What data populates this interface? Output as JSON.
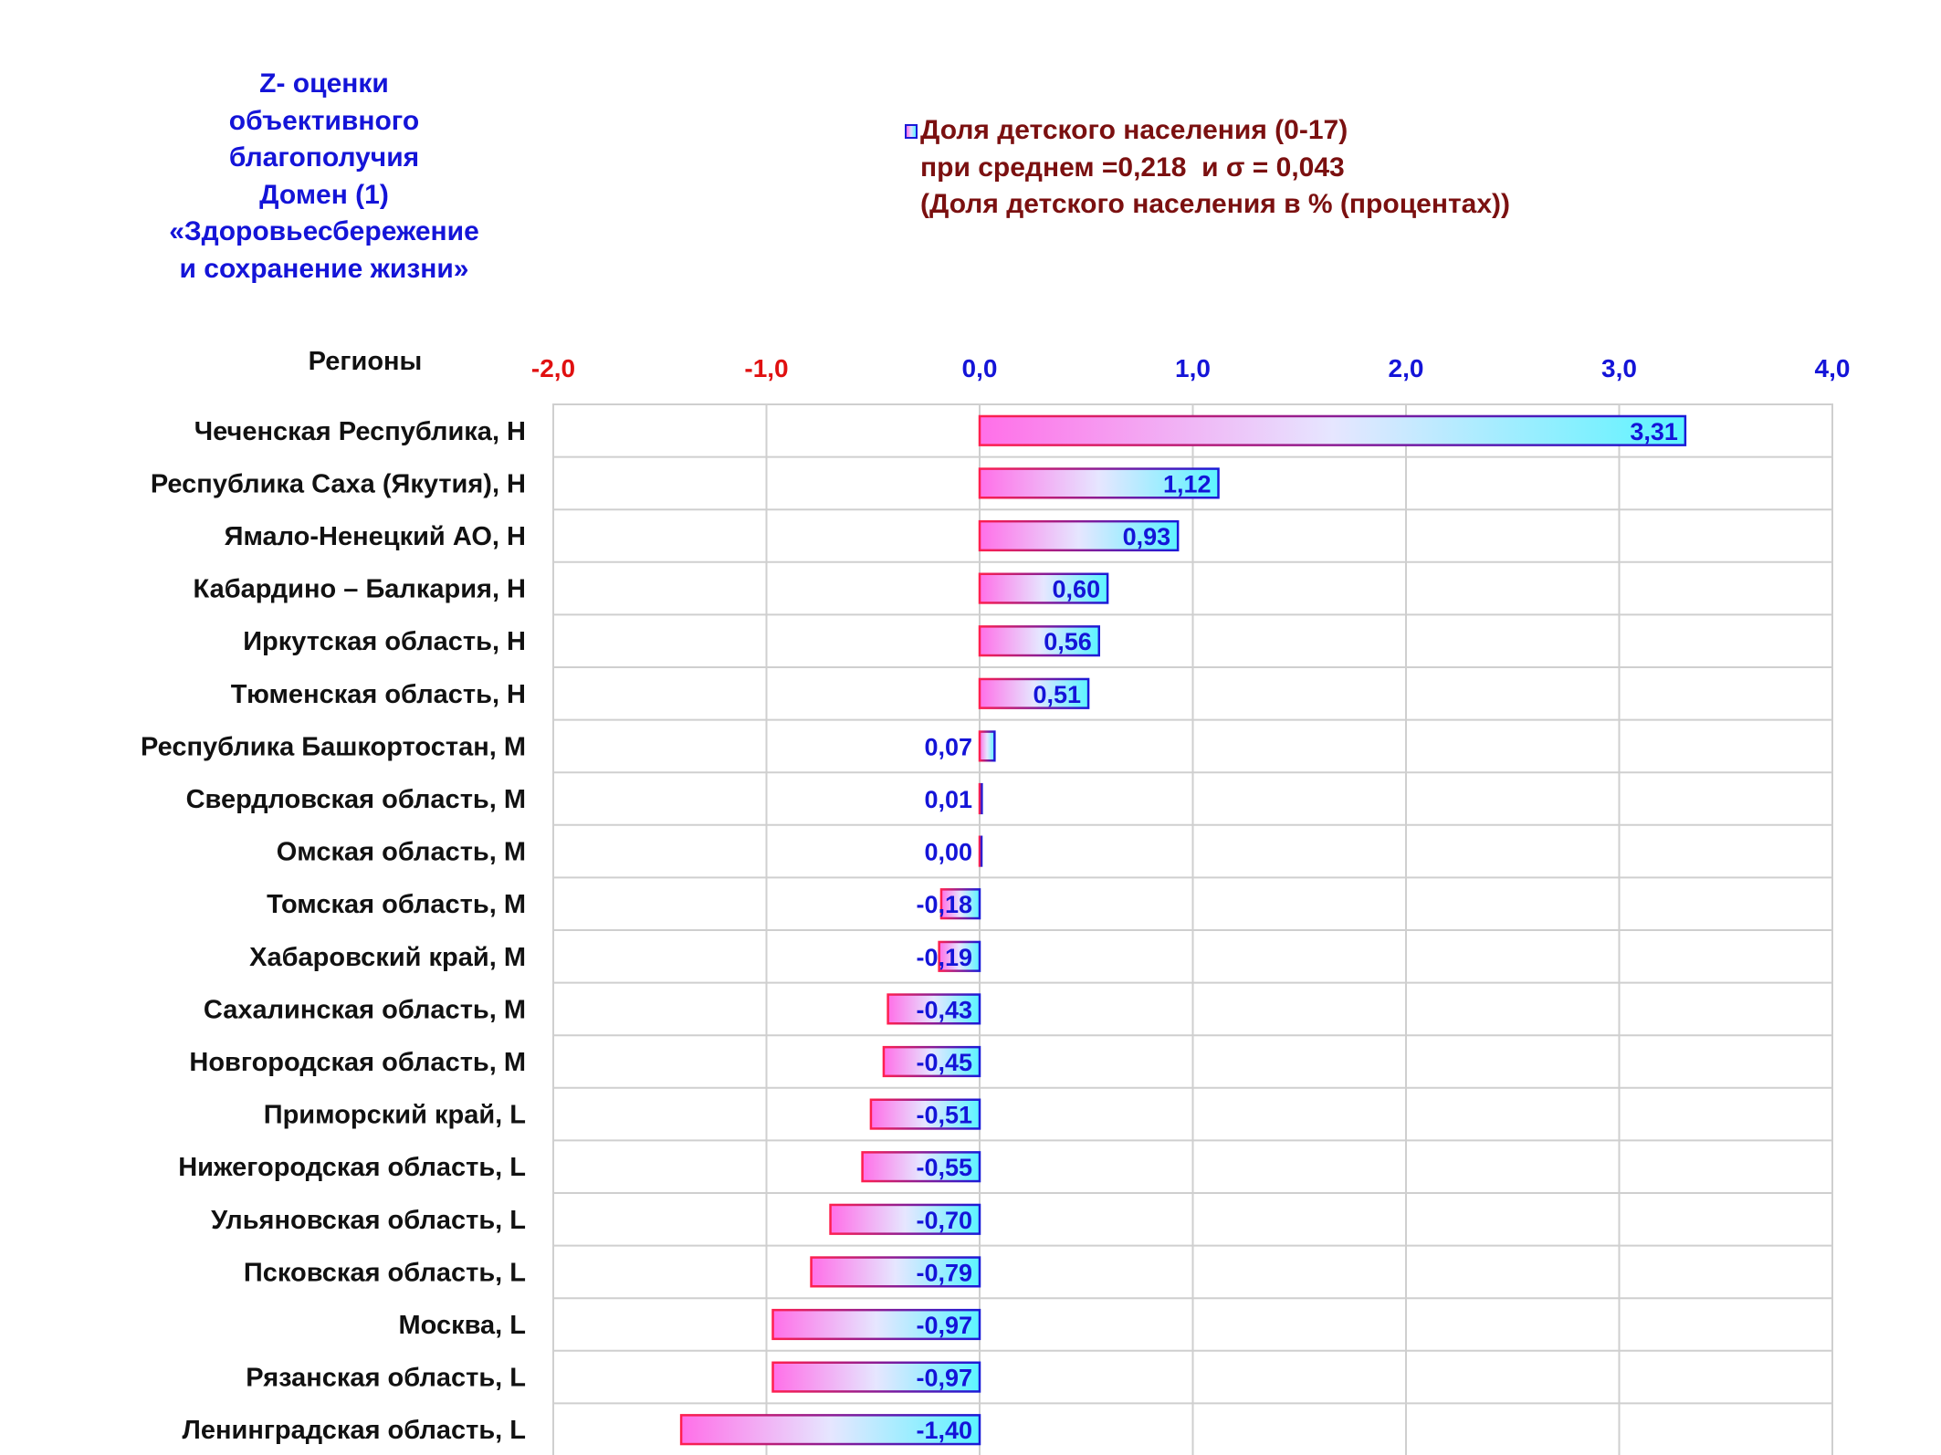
{
  "chart_data": {
    "type": "bar",
    "orientation": "horizontal",
    "title_lines": [
      "Z- оценки",
      "объективного",
      "благополучия",
      "Домен (1)",
      "«Здоровьесбережение",
      "и сохранение жизни»"
    ],
    "legend_lines": [
      "Доля детского населения (0-17)",
      "при среднем =0,218  и σ = 0,043",
      "(Доля детского населения в % (процентах))"
    ],
    "category_axis_label": "Регионы",
    "xlim": [
      -2.0,
      4.0
    ],
    "x_ticks": [
      {
        "value": -2,
        "label": "-2,0"
      },
      {
        "value": -1,
        "label": "-1,0"
      },
      {
        "value": 0,
        "label": "0,0"
      },
      {
        "value": 1,
        "label": "1,0"
      },
      {
        "value": 2,
        "label": "2,0"
      },
      {
        "value": 3,
        "label": "3,0"
      },
      {
        "value": 4,
        "label": "4,0"
      }
    ],
    "grid": true,
    "categories": [
      "Чеченская Республика,  Н",
      "Республика Саха (Якутия),  Н",
      "Ямало-Ненецкий АО,  Н",
      "Кабардино – Балкария,  Н",
      "Иркутская область,  Н",
      "Тюменская область,  Н",
      "Республика Башкортостан,  М",
      "Свердловская область,  М",
      "Омская область,  М",
      "Томская область,  М",
      "Хабаровский край,  М",
      "Сахалинская область,  М",
      "Новгородская область,  М",
      "Приморский край,  L",
      "Нижегородская область,  L",
      "Ульяновская область,  L",
      "Псковская область,  L",
      "Москва,  L",
      "Рязанская область,  L",
      "Ленинградская область,  L"
    ],
    "values": [
      3.31,
      1.12,
      0.93,
      0.6,
      0.56,
      0.51,
      0.07,
      0.01,
      0.0,
      -0.18,
      -0.19,
      -0.43,
      -0.45,
      -0.51,
      -0.55,
      -0.7,
      -0.79,
      -0.97,
      -0.97,
      -1.4
    ],
    "value_labels": [
      "3,31",
      "1,12",
      "0,93",
      "0,60",
      "0,56",
      "0,51",
      "0,07",
      "0,01",
      "0,00",
      "-0,18",
      "-0,19",
      "-0,43",
      "-0,45",
      "-0,51",
      "-0,55",
      "-0,70",
      "-0,79",
      "-0,97",
      "-0,97",
      "-1,40"
    ],
    "colors": {
      "title": "#1414d8",
      "legend_text": "#7b1010",
      "negative_tick": "#e01010",
      "positive_tick": "#1414d8",
      "value_label": "#1414d8",
      "category_label": "#111111",
      "bar_gradient_start": "#ff6fe8",
      "bar_gradient_mid": "#e6e6ff",
      "bar_gradient_end": "#5cf4ff",
      "bar_border_start": "#ff1f4f",
      "bar_border_end": "#1a1ad8",
      "grid": "#cfcfcf"
    }
  }
}
